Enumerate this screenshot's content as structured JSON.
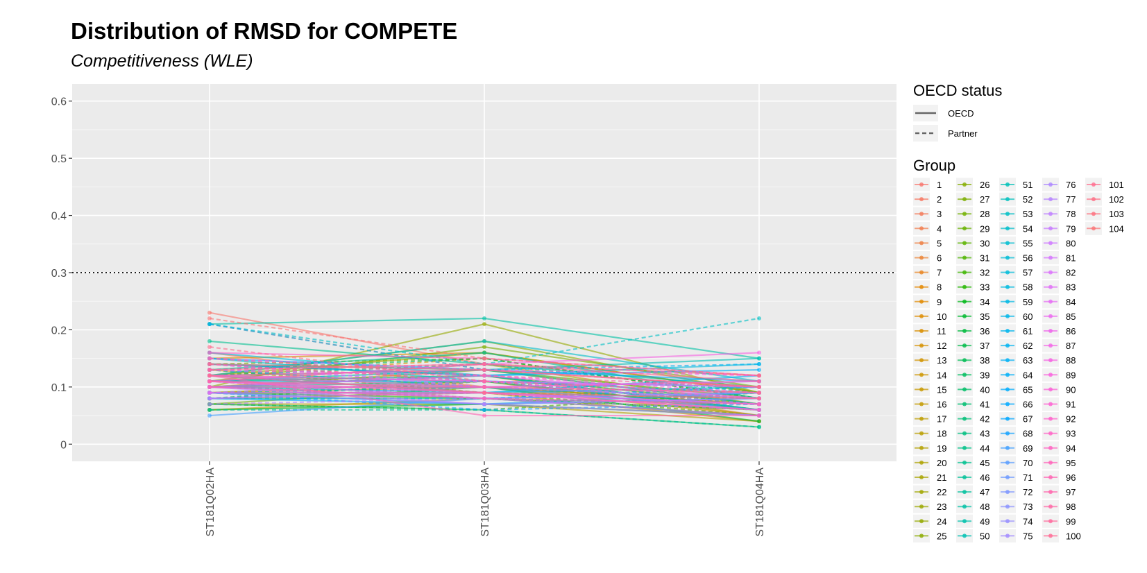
{
  "chart_data": {
    "type": "line",
    "title": "Distribution of RMSD for COMPETE",
    "subtitle": "Competitiveness (WLE)",
    "xlabel": "",
    "ylabel": "",
    "categories": [
      "ST181Q02HA",
      "ST181Q03HA",
      "ST181Q04HA"
    ],
    "ylim": [
      -0.03,
      0.63
    ],
    "yticks": [
      0,
      0.1,
      0.2,
      0.3,
      0.4,
      0.5,
      0.6
    ],
    "y_tick_labels": [
      "0",
      "0.1",
      "0.2",
      "0.3",
      "0.4",
      "0.5",
      "0.6"
    ],
    "reference_line": {
      "y": 0.3,
      "style": "dotted"
    },
    "grid": true,
    "legend_placement": "right",
    "linetype_legend": {
      "title": "OECD status",
      "entries": [
        {
          "label": "OECD",
          "style": "solid"
        },
        {
          "label": "Partner",
          "style": "dashed"
        }
      ]
    },
    "group_legend": {
      "title": "Group",
      "count": 104,
      "columns": 5,
      "rows_per_column": 25
    },
    "series_values": [
      [
        0.23,
        0.14,
        0.12
      ],
      [
        0.21,
        0.13,
        0.1
      ],
      [
        0.16,
        0.1,
        0.07
      ],
      [
        0.12,
        0.11,
        0.06
      ],
      [
        0.1,
        0.09,
        0.08
      ],
      [
        0.14,
        0.12,
        0.05
      ],
      [
        0.13,
        0.1,
        0.07
      ],
      [
        0.11,
        0.08,
        0.06
      ],
      [
        0.09,
        0.1,
        0.05
      ],
      [
        0.15,
        0.16,
        0.09
      ],
      [
        0.12,
        0.15,
        0.08
      ],
      [
        0.08,
        0.09,
        0.04
      ],
      [
        0.1,
        0.13,
        0.07
      ],
      [
        0.14,
        0.11,
        0.06
      ],
      [
        0.12,
        0.1,
        0.08
      ],
      [
        0.06,
        0.08,
        0.05
      ],
      [
        0.1,
        0.12,
        0.06
      ],
      [
        0.11,
        0.14,
        0.07
      ],
      [
        0.07,
        0.07,
        0.04
      ],
      [
        0.13,
        0.09,
        0.08
      ],
      [
        0.09,
        0.11,
        0.05
      ],
      [
        0.12,
        0.16,
        0.09
      ],
      [
        0.08,
        0.1,
        0.07
      ],
      [
        0.1,
        0.21,
        0.09
      ],
      [
        0.12,
        0.18,
        0.09
      ],
      [
        0.14,
        0.15,
        0.08
      ],
      [
        0.11,
        0.17,
        0.1
      ],
      [
        0.07,
        0.1,
        0.06
      ],
      [
        0.08,
        0.09,
        0.05
      ],
      [
        0.1,
        0.12,
        0.07
      ],
      [
        0.12,
        0.13,
        0.08
      ],
      [
        0.07,
        0.06,
        0.09
      ],
      [
        0.09,
        0.08,
        0.06
      ],
      [
        0.06,
        0.07,
        0.05
      ],
      [
        0.08,
        0.11,
        0.07
      ],
      [
        0.1,
        0.1,
        0.04
      ],
      [
        0.11,
        0.12,
        0.06
      ],
      [
        0.13,
        0.15,
        0.08
      ],
      [
        0.09,
        0.09,
        0.07
      ],
      [
        0.07,
        0.06,
        0.03
      ],
      [
        0.12,
        0.14,
        0.09
      ],
      [
        0.1,
        0.11,
        0.06
      ],
      [
        0.08,
        0.08,
        0.05
      ],
      [
        0.14,
        0.12,
        0.07
      ],
      [
        0.18,
        0.14,
        0.1
      ],
      [
        0.13,
        0.16,
        0.08
      ],
      [
        0.06,
        0.06,
        0.03
      ],
      [
        0.21,
        0.22,
        0.15
      ],
      [
        0.11,
        0.13,
        0.07
      ],
      [
        0.09,
        0.1,
        0.08
      ],
      [
        0.14,
        0.13,
        0.15
      ],
      [
        0.1,
        0.12,
        0.06
      ],
      [
        0.21,
        0.14,
        0.22
      ],
      [
        0.12,
        0.18,
        0.11
      ],
      [
        0.15,
        0.11,
        0.09
      ],
      [
        0.08,
        0.08,
        0.07
      ],
      [
        0.1,
        0.09,
        0.1
      ],
      [
        0.16,
        0.12,
        0.14
      ],
      [
        0.13,
        0.1,
        0.08
      ],
      [
        0.09,
        0.07,
        0.09
      ],
      [
        0.11,
        0.11,
        0.1
      ],
      [
        0.21,
        0.13,
        0.14
      ],
      [
        0.12,
        0.09,
        0.12
      ],
      [
        0.14,
        0.12,
        0.13
      ],
      [
        0.1,
        0.08,
        0.1
      ],
      [
        0.08,
        0.07,
        0.08
      ],
      [
        0.15,
        0.13,
        0.11
      ],
      [
        0.09,
        0.06,
        0.07
      ],
      [
        0.05,
        0.08,
        0.09
      ],
      [
        0.11,
        0.1,
        0.06
      ],
      [
        0.12,
        0.09,
        0.07
      ],
      [
        0.1,
        0.08,
        0.09
      ],
      [
        0.08,
        0.1,
        0.11
      ],
      [
        0.13,
        0.11,
        0.1
      ],
      [
        0.09,
        0.07,
        0.08
      ],
      [
        0.11,
        0.09,
        0.07
      ],
      [
        0.07,
        0.08,
        0.06
      ],
      [
        0.1,
        0.07,
        0.05
      ],
      [
        0.12,
        0.1,
        0.08
      ],
      [
        0.09,
        0.11,
        0.07
      ],
      [
        0.08,
        0.09,
        0.06
      ],
      [
        0.11,
        0.08,
        0.05
      ],
      [
        0.14,
        0.1,
        0.09
      ],
      [
        0.1,
        0.12,
        0.08
      ],
      [
        0.12,
        0.11,
        0.1
      ],
      [
        0.15,
        0.13,
        0.12
      ],
      [
        0.09,
        0.09,
        0.07
      ],
      [
        0.11,
        0.14,
        0.16
      ],
      [
        0.13,
        0.12,
        0.09
      ],
      [
        0.1,
        0.1,
        0.11
      ],
      [
        0.12,
        0.13,
        0.1
      ],
      [
        0.14,
        0.11,
        0.08
      ],
      [
        0.16,
        0.15,
        0.12
      ],
      [
        0.11,
        0.09,
        0.06
      ],
      [
        0.13,
        0.14,
        0.12
      ],
      [
        0.12,
        0.05,
        0.05
      ],
      [
        0.1,
        0.08,
        0.07
      ],
      [
        0.15,
        0.12,
        0.1
      ],
      [
        0.11,
        0.1,
        0.09
      ],
      [
        0.13,
        0.14,
        0.11
      ],
      [
        0.17,
        0.11,
        0.09
      ],
      [
        0.12,
        0.09,
        0.08
      ],
      [
        0.14,
        0.13,
        0.1
      ],
      [
        0.22,
        0.15,
        0.12
      ]
    ]
  }
}
